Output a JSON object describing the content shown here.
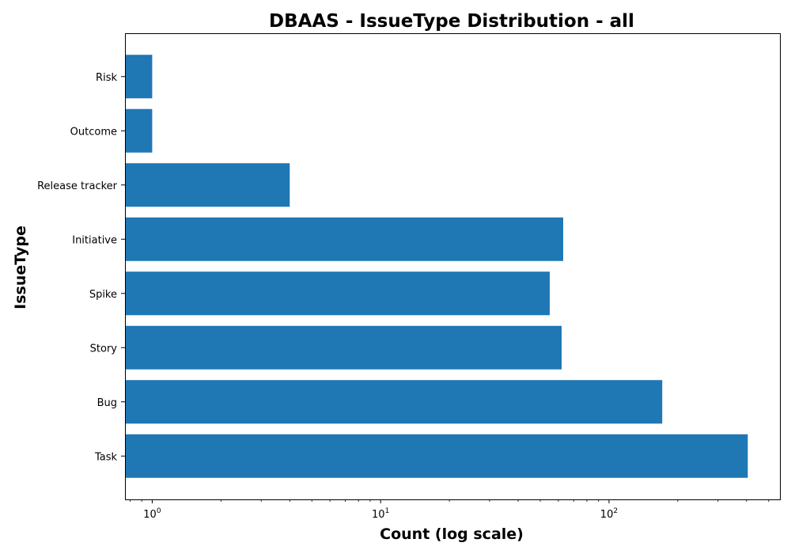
{
  "chart_data": {
    "type": "bar",
    "orientation": "horizontal",
    "title": "DBAAS - IssueType Distribution - all",
    "xlabel": "Count (log scale)",
    "ylabel": "IssueType",
    "xscale": "log",
    "xlim": [
      0.76,
      560
    ],
    "categories": [
      "Task",
      "Bug",
      "Story",
      "Spike",
      "Initiative",
      "Release tracker",
      "Outcome",
      "Risk"
    ],
    "series": [
      {
        "values": [
          405,
          171,
          62,
          55,
          63,
          4,
          1,
          1
        ],
        "color": "#1f77b4"
      }
    ],
    "x_ticks": [
      {
        "base": "10",
        "exp": "0",
        "value": 1
      },
      {
        "base": "10",
        "exp": "1",
        "value": 10
      },
      {
        "base": "10",
        "exp": "2",
        "value": 100
      }
    ],
    "grid": false,
    "legend": "none"
  }
}
